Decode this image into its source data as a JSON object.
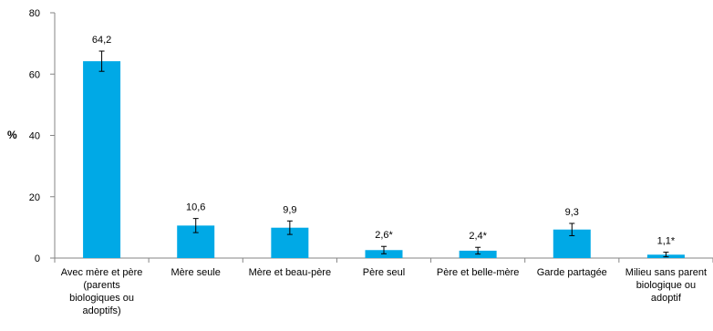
{
  "chart_data": {
    "type": "bar",
    "ylabel": "%",
    "ylim": [
      0,
      80
    ],
    "yticks": [
      0,
      20,
      40,
      60,
      80
    ],
    "grid": false,
    "legend": "none",
    "bar_color": "#00A9E6",
    "categories": [
      "Avec mère et père (parents biologiques ou adoptifs)",
      "Mère seule",
      "Mère et beau-père",
      "Père seul",
      "Père et belle-mère",
      "Garde partagée",
      "Milieu sans parent biologique ou adoptif"
    ],
    "category_lines": [
      [
        "Avec mère et père",
        "(parents",
        "biologiques ou",
        "adoptifs)"
      ],
      [
        "Mère seule"
      ],
      [
        "Mère et beau-père"
      ],
      [
        "Père seul"
      ],
      [
        "Père et belle-mère"
      ],
      [
        "Garde partagée"
      ],
      [
        "Milieu sans parent",
        "biologique ou",
        "adoptif"
      ]
    ],
    "values": [
      64.2,
      10.6,
      9.9,
      2.6,
      2.4,
      9.3,
      1.1
    ],
    "value_labels": [
      "64,2",
      "10,6",
      "9,9",
      "2,6*",
      "2,4*",
      "9,3",
      "1,1*"
    ],
    "error_bars": [
      [
        60.9,
        67.5
      ],
      [
        8.3,
        12.9
      ],
      [
        7.7,
        12.1
      ],
      [
        1.4,
        3.8
      ],
      [
        1.3,
        3.5
      ],
      [
        7.3,
        11.3
      ],
      [
        0.4,
        1.9
      ]
    ]
  }
}
